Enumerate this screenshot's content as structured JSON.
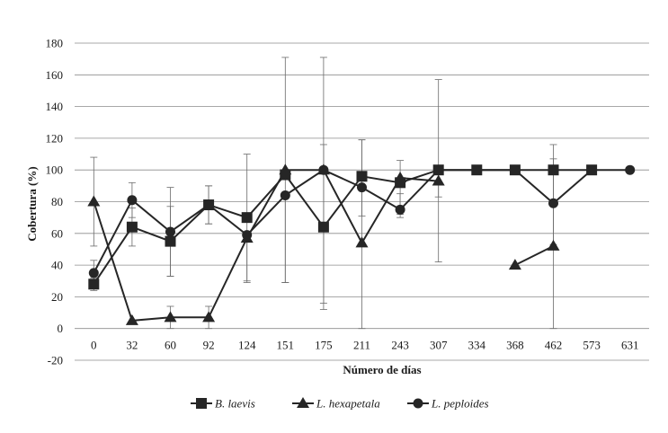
{
  "chart_data": {
    "type": "line",
    "title": "",
    "xlabel": "Número de días",
    "ylabel": "Cobertura (%)",
    "ylim": [
      -20,
      180
    ],
    "yticks": [
      -20,
      0,
      20,
      40,
      60,
      80,
      100,
      120,
      140,
      160,
      180
    ],
    "grid": true,
    "legend": "bottom",
    "categories": [
      "0",
      "32",
      "60",
      "92",
      "124",
      "151",
      "175",
      "211",
      "243",
      "307",
      "334",
      "368",
      "462",
      "573",
      "631"
    ],
    "series": [
      {
        "name": "B. laevis",
        "marker": "square",
        "values": [
          28,
          64,
          55,
          78,
          70,
          97,
          64,
          96,
          92,
          100,
          100,
          100,
          100,
          100,
          null
        ],
        "error_low": [
          4,
          12,
          22,
          12,
          40,
          68,
          52,
          null,
          20,
          58,
          null,
          null,
          null,
          null,
          null
        ],
        "error_high": [
          4,
          12,
          22,
          12,
          40,
          74,
          107,
          null,
          14,
          57,
          null,
          null,
          null,
          null,
          null
        ]
      },
      {
        "name": "L. hexapetala",
        "marker": "triangle",
        "values": [
          80,
          5,
          7,
          7,
          57,
          100,
          100,
          54,
          95,
          93,
          null,
          40,
          52,
          null,
          null
        ],
        "error_low": [
          28,
          null,
          7,
          7,
          null,
          null,
          84,
          54,
          null,
          10,
          null,
          null,
          52,
          null,
          null
        ],
        "error_high": [
          28,
          null,
          7,
          7,
          null,
          null,
          16,
          65,
          null,
          10,
          null,
          null,
          64,
          null,
          null
        ]
      },
      {
        "name": "L. peploides",
        "marker": "circle",
        "values": [
          35,
          81,
          61,
          78,
          59,
          84,
          100,
          89,
          75,
          100,
          100,
          100,
          79,
          100,
          100
        ],
        "error_low": [
          8,
          11,
          28,
          12,
          30,
          55,
          null,
          18,
          5,
          null,
          null,
          null,
          26,
          null,
          null
        ],
        "error_high": [
          8,
          11,
          28,
          12,
          null,
          null,
          null,
          30,
          10,
          null,
          null,
          null,
          28,
          null,
          null
        ]
      }
    ]
  }
}
